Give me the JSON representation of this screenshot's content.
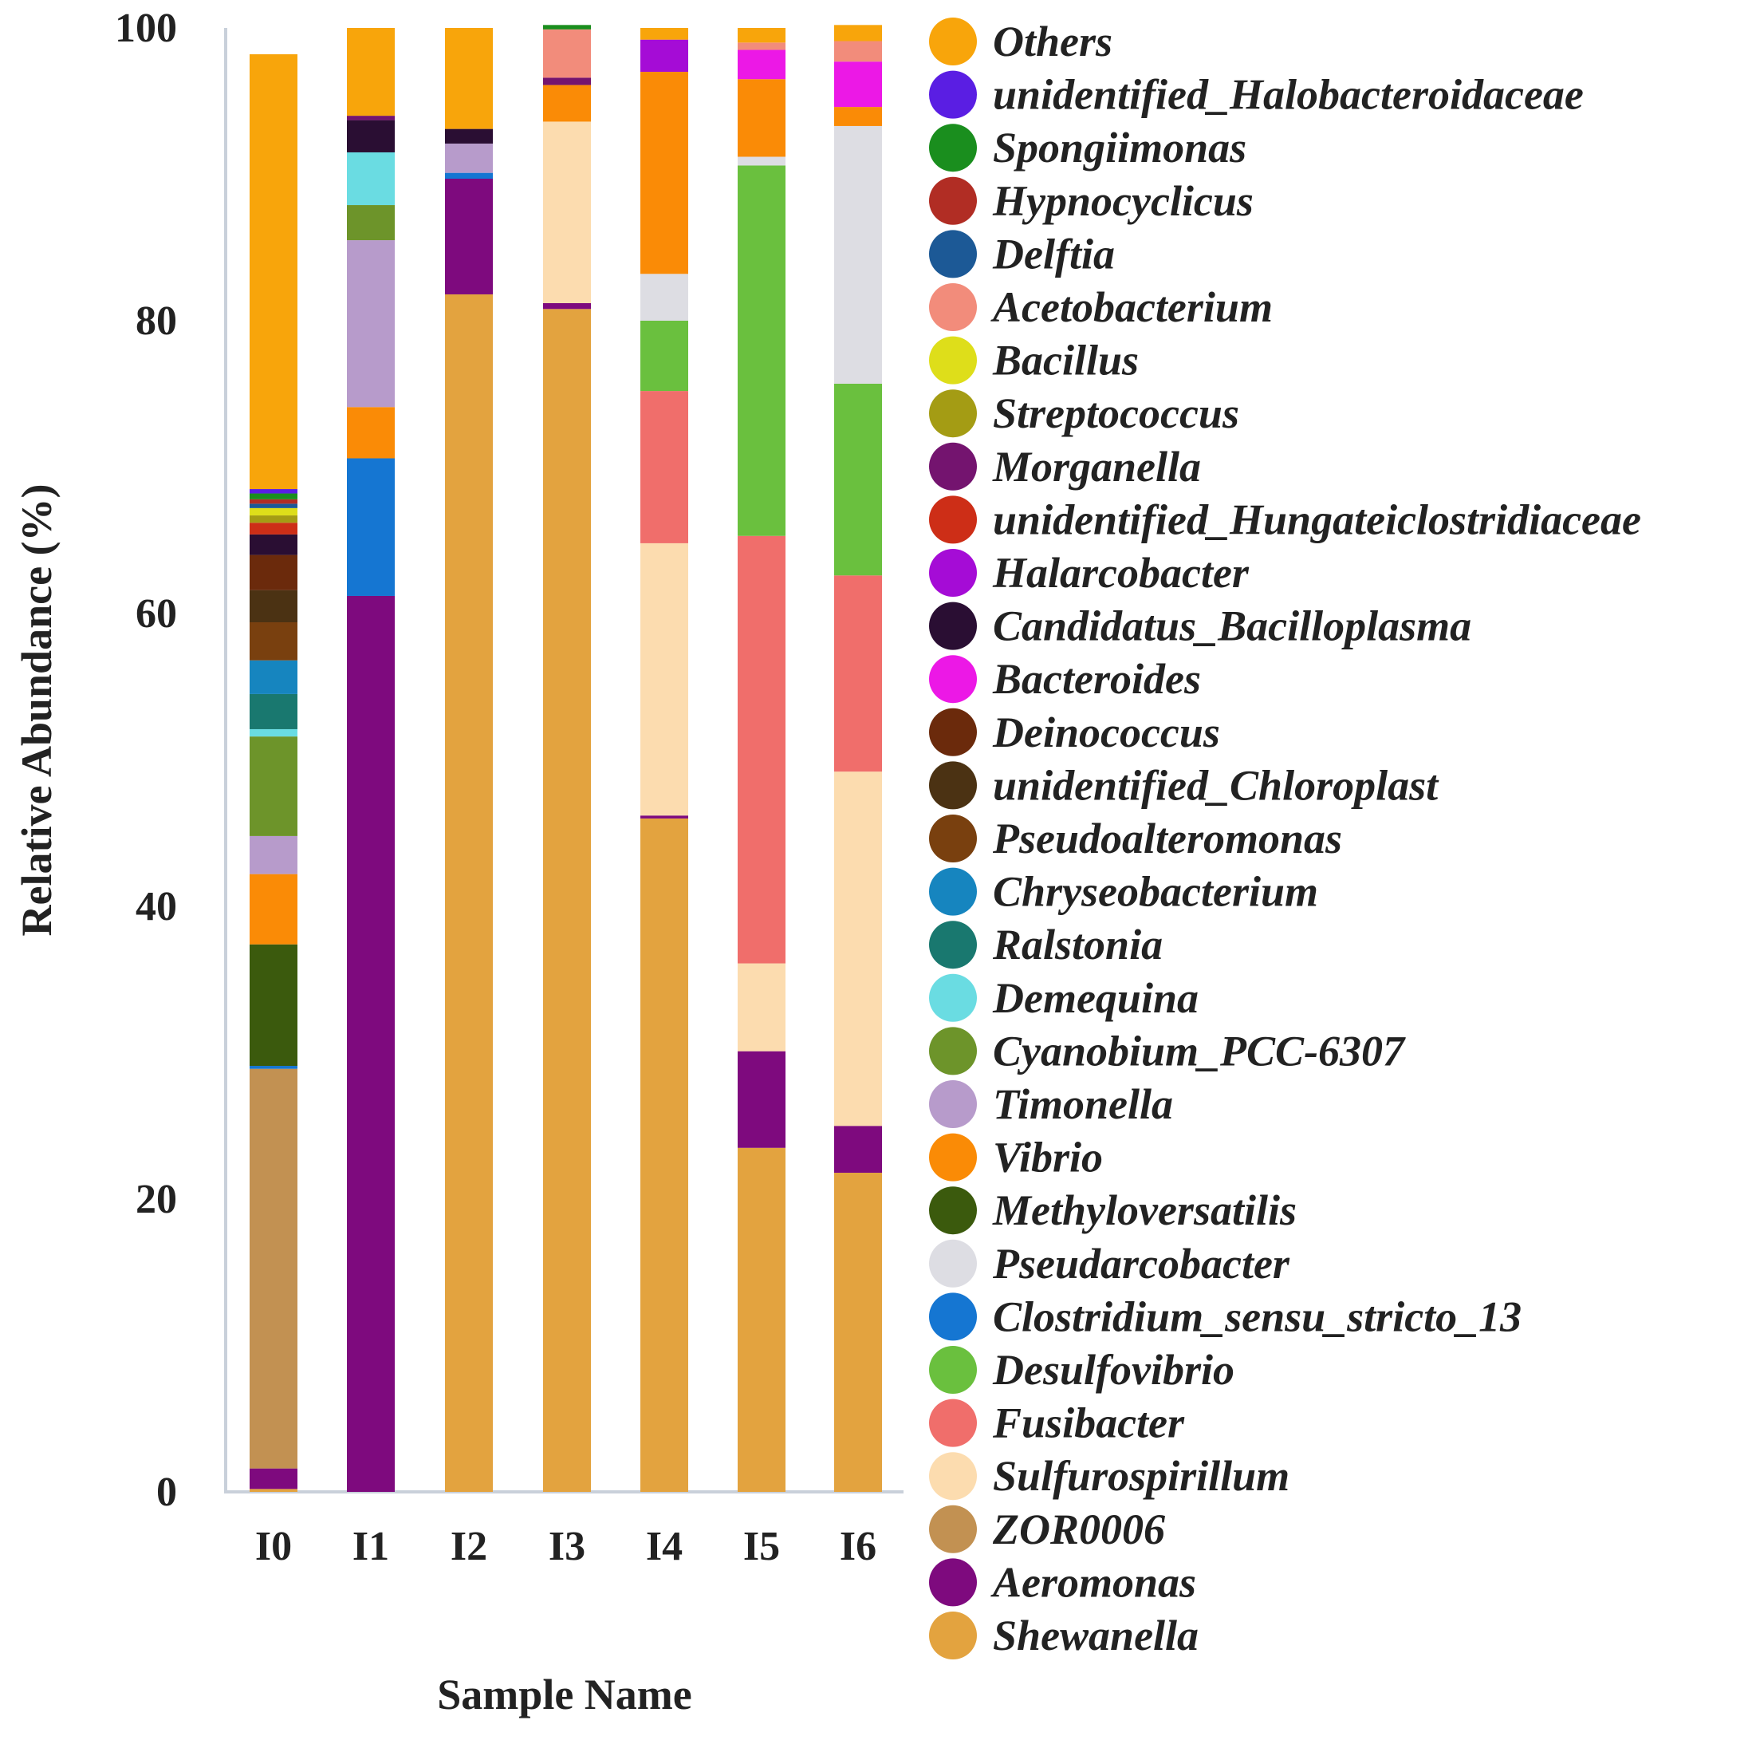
{
  "chart_data": {
    "type": "bar",
    "stacked": true,
    "title": "",
    "xlabel": "Sample Name",
    "ylabel": "Relative Abundance (%)",
    "ylim": [
      0,
      100
    ],
    "yticks": [
      0,
      20,
      40,
      60,
      80,
      100
    ],
    "categories": [
      "I0",
      "I1",
      "I2",
      "I3",
      "I4",
      "I5",
      "I6"
    ],
    "legend_position": "right",
    "series": [
      {
        "name": "Shewanella",
        "color": "#E3A33F",
        "values": [
          0.2,
          0,
          81.8,
          80.8,
          46.0,
          23.5,
          21.8
        ]
      },
      {
        "name": "Aeromonas",
        "color": "#7E0A7E",
        "values": [
          1.4,
          61.2,
          7.9,
          0.4,
          0.2,
          6.6,
          3.2
        ]
      },
      {
        "name": "ZOR0006",
        "color": "#C29152",
        "values": [
          27.3,
          0,
          0,
          0,
          0,
          0,
          0
        ]
      },
      {
        "name": "Sulfurospirillum",
        "color": "#FCDCAF",
        "values": [
          0,
          0,
          0,
          12.4,
          18.6,
          6.0,
          24.2
        ]
      },
      {
        "name": "Fusibacter",
        "color": "#F06E6B",
        "values": [
          0,
          0,
          0,
          0,
          10.4,
          29.2,
          13.4
        ]
      },
      {
        "name": "Desulfovibrio",
        "color": "#6AC03E",
        "values": [
          0,
          0,
          0,
          0,
          4.8,
          25.3,
          13.1
        ]
      },
      {
        "name": "Clostridium_sensu_stricto_13",
        "color": "#1576D2",
        "values": [
          0.2,
          9.4,
          0.4,
          0,
          0,
          0,
          0
        ]
      },
      {
        "name": "Pseudarcobacter",
        "color": "#DDDDE3",
        "values": [
          0,
          0,
          0,
          0,
          3.2,
          0.6,
          17.6
        ]
      },
      {
        "name": "Methyloversatilis",
        "color": "#3B5A0D",
        "values": [
          8.3,
          0,
          0,
          0,
          0,
          0,
          0
        ]
      },
      {
        "name": "Vibrio",
        "color": "#FA8B06",
        "values": [
          4.8,
          3.5,
          0,
          2.5,
          13.8,
          5.3,
          1.3
        ]
      },
      {
        "name": "Timonella",
        "color": "#B79BCB",
        "values": [
          2.6,
          11.4,
          2.0,
          0,
          0,
          0,
          0
        ]
      },
      {
        "name": "Cyanobium_PCC-6307",
        "color": "#6D942A",
        "values": [
          6.8,
          2.4,
          0,
          0,
          0,
          0,
          0
        ]
      },
      {
        "name": "Demequina",
        "color": "#6ADCE2",
        "values": [
          0.5,
          3.6,
          0,
          0,
          0,
          0,
          0
        ]
      },
      {
        "name": "Ralstonia",
        "color": "#19786F",
        "values": [
          2.4,
          0,
          0,
          0,
          0,
          0,
          0
        ]
      },
      {
        "name": "Chryseobacterium",
        "color": "#1685BF",
        "values": [
          2.3,
          0,
          0,
          0,
          0,
          0,
          0
        ]
      },
      {
        "name": "Pseudoalteromonas",
        "color": "#79400F",
        "values": [
          2.6,
          0,
          0,
          0,
          0,
          0,
          0
        ]
      },
      {
        "name": "unidentified_Chloroplast",
        "color": "#4B3213",
        "values": [
          2.2,
          0,
          0,
          0,
          0,
          0,
          0
        ]
      },
      {
        "name": "Deinococcus",
        "color": "#6B2A0C",
        "values": [
          2.4,
          0,
          0,
          0,
          0,
          0,
          0
        ]
      },
      {
        "name": "Bacteroides",
        "color": "#EC18E6",
        "values": [
          0,
          0,
          0,
          0,
          0,
          2.0,
          3.1
        ]
      },
      {
        "name": "Candidatus_Bacilloplasma",
        "color": "#2A0E33",
        "values": [
          1.4,
          2.2,
          1.0,
          0,
          0,
          0,
          0
        ]
      },
      {
        "name": "Halarcobacter",
        "color": "#A50CD6",
        "values": [
          0,
          0,
          0,
          0,
          2.2,
          0,
          0
        ]
      },
      {
        "name": "unidentified_Hungateiclostridiaceae",
        "color": "#CD2E17",
        "values": [
          0.8,
          0,
          0,
          0,
          0,
          0,
          0
        ]
      },
      {
        "name": "Morganella",
        "color": "#74146F",
        "values": [
          0,
          0.3,
          0,
          0.5,
          0,
          0,
          0
        ]
      },
      {
        "name": "Streptococcus",
        "color": "#A49C14",
        "values": [
          0.5,
          0,
          0,
          0,
          0,
          0,
          0
        ]
      },
      {
        "name": "Bacillus",
        "color": "#DEDE1A",
        "values": [
          0.5,
          0,
          0,
          0,
          0,
          0,
          0
        ]
      },
      {
        "name": "Acetobacterium",
        "color": "#F28C7B",
        "values": [
          0,
          0,
          0,
          3.3,
          0,
          0.5,
          1.4
        ]
      },
      {
        "name": "Delftia",
        "color": "#1C5996",
        "values": [
          0.3,
          0,
          0,
          0,
          0,
          0,
          0
        ]
      },
      {
        "name": "Hypnocyclicus",
        "color": "#B12D24",
        "values": [
          0.3,
          0,
          0,
          0,
          0,
          0,
          0
        ]
      },
      {
        "name": "Spongiimonas",
        "color": "#1A8E1E",
        "values": [
          0.4,
          0,
          0,
          0.3,
          0,
          0,
          0
        ]
      },
      {
        "name": "unidentified_Halobacteroidaceae",
        "color": "#5A1EE3",
        "values": [
          0.3,
          0,
          0,
          0,
          0,
          0,
          0
        ]
      },
      {
        "name": "Others",
        "color": "#F8A50B",
        "values": [
          29.7,
          6.0,
          6.9,
          0,
          0.8,
          1.0,
          1.1
        ]
      }
    ]
  }
}
